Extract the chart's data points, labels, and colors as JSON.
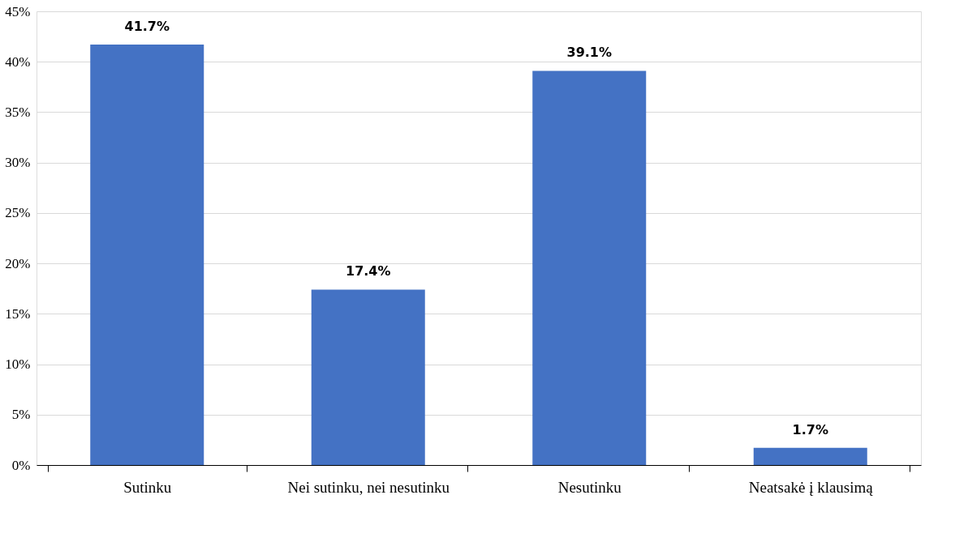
{
  "chart_data": {
    "type": "bar",
    "categories": [
      "Sutinku",
      "Nei sutinku, nei nesutinku",
      "Nesutinku",
      "Neatsakė į klausimą"
    ],
    "values": [
      41.7,
      17.4,
      39.1,
      1.7
    ],
    "value_labels": [
      "41.7%",
      "17.4%",
      "39.1%",
      "1.7%"
    ],
    "color": "#4472c4",
    "ylim": [
      0,
      45
    ],
    "yticks": [
      {
        "value": 0,
        "label": "0%"
      },
      {
        "value": 5,
        "label": "5%"
      },
      {
        "value": 10,
        "label": "10%"
      },
      {
        "value": 15,
        "label": "15%"
      },
      {
        "value": 20,
        "label": "20%"
      },
      {
        "value": 25,
        "label": "25%"
      },
      {
        "value": 30,
        "label": "30%"
      },
      {
        "value": 35,
        "label": "35%"
      },
      {
        "value": 40,
        "label": "40%"
      },
      {
        "value": 45,
        "label": "45%"
      }
    ],
    "grid": "y"
  }
}
